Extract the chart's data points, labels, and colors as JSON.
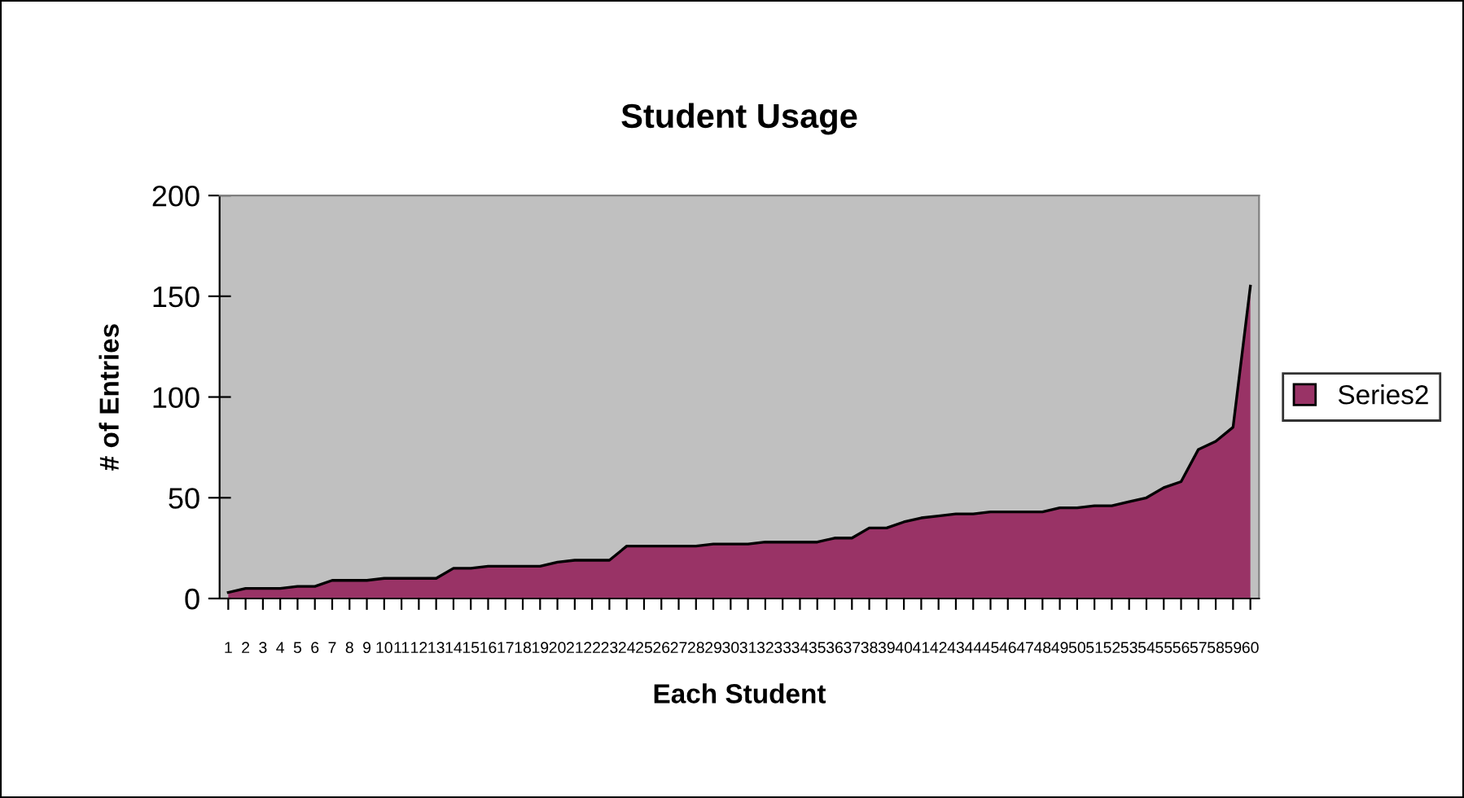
{
  "chart_data": {
    "type": "area",
    "title": "Student Usage",
    "xlabel": "Each Student",
    "ylabel": "# of Entries",
    "categories": [
      "1",
      "2",
      "3",
      "4",
      "5",
      "6",
      "7",
      "8",
      "9",
      "10",
      "11",
      "12",
      "13",
      "14",
      "15",
      "16",
      "17",
      "18",
      "19",
      "20",
      "21",
      "22",
      "23",
      "24",
      "25",
      "26",
      "27",
      "28",
      "29",
      "30",
      "31",
      "32",
      "33",
      "34",
      "35",
      "36",
      "37",
      "38",
      "39",
      "40",
      "41",
      "42",
      "43",
      "44",
      "45",
      "46",
      "47",
      "48",
      "49",
      "50",
      "51",
      "52",
      "53",
      "54",
      "55",
      "56",
      "57",
      "58",
      "59",
      "60"
    ],
    "series": [
      {
        "name": "Series2",
        "color": "#993366",
        "values": [
          3,
          5,
          5,
          5,
          6,
          6,
          9,
          9,
          9,
          10,
          10,
          10,
          10,
          15,
          15,
          16,
          16,
          16,
          16,
          18,
          19,
          19,
          19,
          26,
          26,
          26,
          26,
          26,
          27,
          27,
          27,
          28,
          28,
          28,
          28,
          30,
          30,
          35,
          35,
          38,
          40,
          41,
          42,
          42,
          43,
          43,
          43,
          43,
          45,
          45,
          46,
          46,
          48,
          50,
          55,
          58,
          74,
          78,
          85,
          155
        ]
      }
    ],
    "ylim": [
      0,
      200
    ],
    "yticks": [
      0,
      50,
      100,
      150,
      200
    ],
    "grid": false,
    "legend": "right"
  }
}
